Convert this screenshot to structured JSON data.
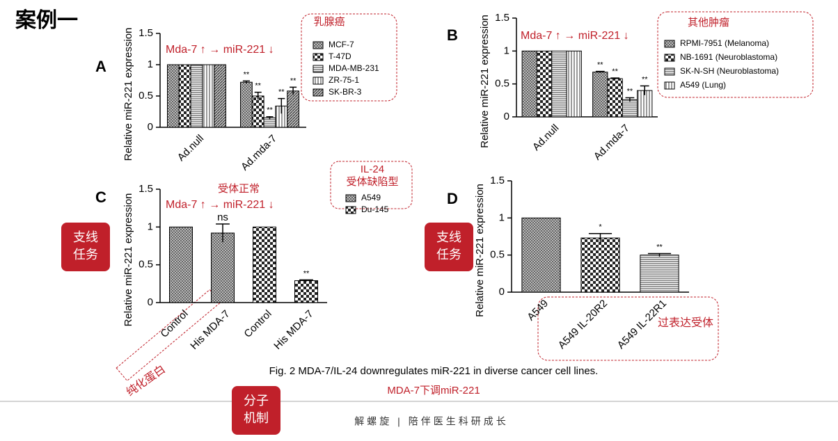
{
  "slide_title": "案例一",
  "chart_data": [
    {
      "type": "bar",
      "panel": "A",
      "ylabel": "Relative miR-221 expression",
      "annotation": "Mda-7 ↑  → miR-221 ↓",
      "legend_title": "乳腺癌",
      "categories": [
        "Ad.null",
        "Ad.mda-7"
      ],
      "ylim": [
        0,
        1.5
      ],
      "yticks": [
        0,
        0.5,
        1,
        1.5
      ],
      "series": [
        {
          "name": "MCF-7",
          "pattern": "cross",
          "values": [
            1,
            0.72
          ],
          "errors": [
            0,
            0.02
          ],
          "sig": [
            null,
            "**"
          ]
        },
        {
          "name": "T-47D",
          "pattern": "check",
          "values": [
            1,
            0.5
          ],
          "errors": [
            0,
            0.06
          ],
          "sig": [
            null,
            "**"
          ]
        },
        {
          "name": "MDA-MB-231",
          "pattern": "hline",
          "values": [
            1,
            0.15
          ],
          "errors": [
            0,
            0.02
          ],
          "sig": [
            null,
            "**"
          ]
        },
        {
          "name": "ZR-75-1",
          "pattern": "vline",
          "values": [
            1,
            0.34
          ],
          "errors": [
            0,
            0.12
          ],
          "sig": [
            null,
            "**"
          ]
        },
        {
          "name": "SK-BR-3",
          "pattern": "diag",
          "values": [
            1,
            0.58
          ],
          "errors": [
            0,
            0.06
          ],
          "sig": [
            null,
            "**"
          ]
        }
      ]
    },
    {
      "type": "bar",
      "panel": "B",
      "ylabel": "Relative miR-221 expression",
      "annotation": "Mda-7 ↑  → miR-221 ↓",
      "legend_title": "其他肿瘤",
      "categories": [
        "Ad.null",
        "Ad.mda-7"
      ],
      "ylim": [
        0,
        1.5
      ],
      "yticks": [
        0,
        0.5,
        1,
        1.5
      ],
      "series": [
        {
          "name": "RPMI-7951 (Melanoma)",
          "pattern": "cross",
          "values": [
            1,
            0.68
          ],
          "errors": [
            0,
            0.01
          ],
          "sig": [
            null,
            "**"
          ]
        },
        {
          "name": "NB-1691 (Neuroblastoma)",
          "pattern": "check",
          "values": [
            1,
            0.58
          ],
          "errors": [
            0,
            0.01
          ],
          "sig": [
            null,
            "**"
          ]
        },
        {
          "name": "SK-N-SH (Neuroblastoma)",
          "pattern": "hline",
          "values": [
            1,
            0.26
          ],
          "errors": [
            0,
            0.03
          ],
          "sig": [
            null,
            "**"
          ]
        },
        {
          "name": "A549 (Lung)",
          "pattern": "vline",
          "values": [
            1,
            0.4
          ],
          "errors": [
            0,
            0.07
          ],
          "sig": [
            null,
            "**"
          ]
        }
      ]
    },
    {
      "type": "bar",
      "panel": "C",
      "ylabel": "Relative miR-221 expression",
      "annotation": "Mda-7 ↑  →    miR-221 ↓",
      "annotation_top": "受体正常",
      "legend_title": [
        "IL-24",
        "受体缺陷型"
      ],
      "categories": [
        "Control",
        "His MDA-7",
        "Control",
        "His MDA-7"
      ],
      "ylim": [
        0,
        1.5
      ],
      "yticks": [
        0,
        0.5,
        1,
        1.5
      ],
      "series": [
        {
          "name": "A549",
          "pattern": "cross",
          "values": [
            1,
            0.92,
            null,
            null
          ],
          "errors": [
            0,
            0.12,
            null,
            null
          ],
          "sig": [
            null,
            "ns",
            null,
            null
          ]
        },
        {
          "name": "Du-145",
          "pattern": "check",
          "values": [
            null,
            null,
            1,
            0.29
          ],
          "errors": [
            null,
            null,
            0,
            0.01
          ],
          "sig": [
            null,
            null,
            null,
            "**"
          ]
        }
      ]
    },
    {
      "type": "bar",
      "panel": "D",
      "ylabel": "Relative miR-221 expression",
      "categories": [
        "A549",
        "A549 IL-20R2",
        "A549 IL-22R1"
      ],
      "ylim": [
        0,
        1.5
      ],
      "yticks": [
        0,
        0.5,
        1,
        1.5
      ],
      "series": [
        {
          "patterns": [
            "cross",
            "check",
            "hline"
          ],
          "values": [
            1,
            0.73,
            0.5
          ],
          "errors": [
            0,
            0.06,
            0.02
          ],
          "sig": [
            null,
            "*",
            "**"
          ]
        }
      ]
    }
  ],
  "badges": [
    [
      "支线",
      "任务"
    ],
    [
      "支线",
      "任务"
    ],
    [
      "分子",
      "机制"
    ]
  ],
  "notes": {
    "purified": "纯化蛋白",
    "overexpress": "过表达受体"
  },
  "caption": "Fig. 2 MDA-7/IL-24 downregulates miR-221 in diverse cancer cell lines.",
  "subcaption": "MDA-7下调miR-221",
  "footer": "解螺旋 | 陪伴医生科研成长"
}
